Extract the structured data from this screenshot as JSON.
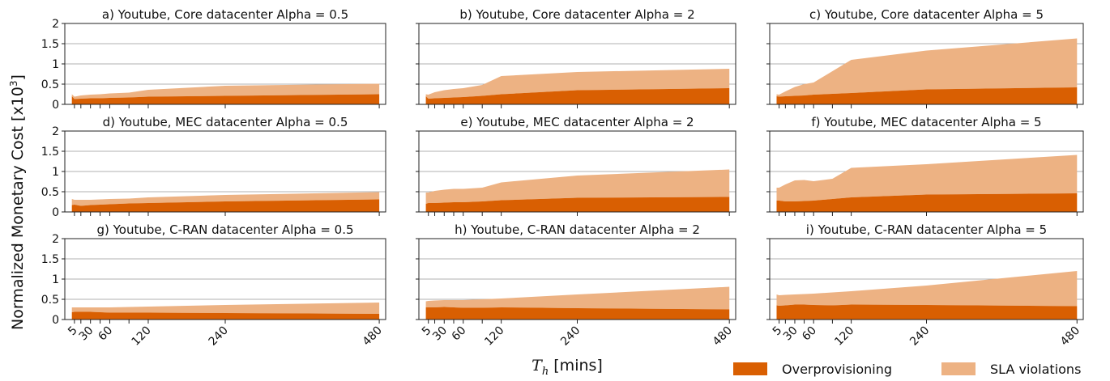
{
  "figure": {
    "ylabel": "Normalized Monetary Cost [x10",
    "ylabel_sup": "3",
    "ylabel_end": "]",
    "xlabel_var": "T",
    "xlabel_sub": "h",
    "xlabel_unit": " [mins]"
  },
  "legend": {
    "items": [
      {
        "label": "Overprovisioning",
        "color": "#d95f02"
      },
      {
        "label": "SLA violations",
        "color": "#edb283"
      }
    ]
  },
  "chart_data": [
    {
      "type": "area",
      "title": "a) Youtube, Core datacenter Alpha = 0.5",
      "x": [
        1,
        5,
        15,
        30,
        45,
        60,
        90,
        120,
        240,
        480
      ],
      "series": [
        {
          "name": "Overprovisioning",
          "values": [
            0.2,
            0.13,
            0.14,
            0.15,
            0.15,
            0.16,
            0.17,
            0.19,
            0.21,
            0.25
          ]
        },
        {
          "name": "SLA violations",
          "values": [
            0.05,
            0.06,
            0.08,
            0.09,
            0.1,
            0.11,
            0.12,
            0.17,
            0.25,
            0.26
          ]
        }
      ],
      "ylim": [
        0,
        2
      ],
      "yticks": [
        "0",
        "0.5",
        "1",
        "1.5",
        "2"
      ],
      "xticks": [],
      "grid": "horizontal"
    },
    {
      "type": "area",
      "title": "b) Youtube, Core datacenter Alpha = 2",
      "x": [
        1,
        5,
        15,
        30,
        45,
        60,
        90,
        120,
        240,
        480
      ],
      "series": [
        {
          "name": "Overprovisioning",
          "values": [
            0.2,
            0.14,
            0.15,
            0.16,
            0.17,
            0.18,
            0.21,
            0.25,
            0.35,
            0.4
          ]
        },
        {
          "name": "SLA violations",
          "values": [
            0.05,
            0.1,
            0.15,
            0.19,
            0.21,
            0.22,
            0.27,
            0.45,
            0.45,
            0.48
          ]
        }
      ],
      "ylim": [
        0,
        2
      ],
      "yticks": [],
      "xticks": [],
      "grid": "horizontal"
    },
    {
      "type": "area",
      "title": "c) Youtube, Core datacenter Alpha = 5",
      "x": [
        1,
        5,
        15,
        30,
        45,
        60,
        90,
        120,
        240,
        480
      ],
      "series": [
        {
          "name": "Overprovisioning",
          "values": [
            0.2,
            0.19,
            0.2,
            0.21,
            0.22,
            0.24,
            0.26,
            0.28,
            0.37,
            0.42
          ]
        },
        {
          "name": "SLA violations",
          "values": [
            0.05,
            0.05,
            0.12,
            0.22,
            0.28,
            0.3,
            0.56,
            0.82,
            0.96,
            1.21
          ]
        }
      ],
      "ylim": [
        0,
        2
      ],
      "yticks": [],
      "xticks": [],
      "grid": "horizontal"
    },
    {
      "type": "area",
      "title": "d) Youtube, MEC datacenter Alpha = 0.5",
      "x": [
        1,
        5,
        15,
        30,
        45,
        60,
        90,
        120,
        240,
        480
      ],
      "series": [
        {
          "name": "Overprovisioning",
          "values": [
            0.17,
            0.18,
            0.15,
            0.17,
            0.18,
            0.19,
            0.21,
            0.22,
            0.26,
            0.31
          ]
        },
        {
          "name": "SLA violations",
          "values": [
            0.15,
            0.12,
            0.15,
            0.13,
            0.13,
            0.13,
            0.12,
            0.14,
            0.16,
            0.18
          ]
        }
      ],
      "ylim": [
        0,
        2
      ],
      "yticks": [
        "0",
        "0.5",
        "1",
        "1.5",
        "2"
      ],
      "xticks": [],
      "grid": "horizontal"
    },
    {
      "type": "area",
      "title": "e) Youtube, MEC datacenter Alpha = 2",
      "x": [
        1,
        5,
        15,
        30,
        45,
        60,
        90,
        120,
        240,
        480
      ],
      "series": [
        {
          "name": "Overprovisioning",
          "values": [
            0.2,
            0.22,
            0.22,
            0.23,
            0.24,
            0.24,
            0.26,
            0.29,
            0.35,
            0.37
          ]
        },
        {
          "name": "SLA violations",
          "values": [
            0.28,
            0.26,
            0.3,
            0.32,
            0.33,
            0.33,
            0.34,
            0.44,
            0.55,
            0.68
          ]
        }
      ],
      "ylim": [
        0,
        2
      ],
      "yticks": [],
      "xticks": [],
      "grid": "horizontal"
    },
    {
      "type": "area",
      "title": "f) Youtube, MEC datacenter Alpha = 5",
      "x": [
        1,
        5,
        15,
        30,
        45,
        60,
        90,
        120,
        240,
        480
      ],
      "series": [
        {
          "name": "Overprovisioning",
          "values": [
            0.28,
            0.28,
            0.26,
            0.26,
            0.27,
            0.28,
            0.32,
            0.36,
            0.43,
            0.46
          ]
        },
        {
          "name": "SLA violations",
          "values": [
            0.32,
            0.32,
            0.42,
            0.52,
            0.52,
            0.48,
            0.5,
            0.73,
            0.75,
            0.95
          ]
        }
      ],
      "ylim": [
        0,
        2
      ],
      "yticks": [],
      "xticks": [],
      "grid": "horizontal"
    },
    {
      "type": "area",
      "title": "g) Youtube, C-RAN datacenter Alpha = 0.5",
      "x": [
        1,
        5,
        15,
        30,
        45,
        60,
        90,
        120,
        240,
        480
      ],
      "series": [
        {
          "name": "Overprovisioning",
          "values": [
            0.18,
            0.19,
            0.19,
            0.19,
            0.18,
            0.17,
            0.17,
            0.17,
            0.16,
            0.14
          ]
        },
        {
          "name": "SLA violations",
          "values": [
            0.12,
            0.11,
            0.11,
            0.11,
            0.12,
            0.13,
            0.14,
            0.15,
            0.2,
            0.28
          ]
        }
      ],
      "ylim": [
        0,
        2
      ],
      "yticks": [
        "0",
        "0.5",
        "1",
        "1.5",
        "2"
      ],
      "xticks": [
        "5",
        "30",
        "60",
        "120",
        "240",
        "480"
      ],
      "grid": "horizontal"
    },
    {
      "type": "area",
      "title": "h) Youtube, C-RAN datacenter Alpha = 2",
      "x": [
        1,
        5,
        15,
        30,
        45,
        60,
        90,
        120,
        240,
        480
      ],
      "series": [
        {
          "name": "Overprovisioning",
          "values": [
            0.3,
            0.3,
            0.3,
            0.31,
            0.3,
            0.29,
            0.29,
            0.3,
            0.28,
            0.25
          ]
        },
        {
          "name": "SLA violations",
          "values": [
            0.15,
            0.16,
            0.17,
            0.17,
            0.18,
            0.19,
            0.21,
            0.22,
            0.34,
            0.56
          ]
        }
      ],
      "ylim": [
        0,
        2
      ],
      "yticks": [],
      "xticks": [
        "5",
        "30",
        "60",
        "120",
        "240",
        "480"
      ],
      "grid": "horizontal"
    },
    {
      "type": "area",
      "title": "i) Youtube, C-RAN datacenter Alpha = 5",
      "x": [
        1,
        5,
        15,
        30,
        45,
        60,
        90,
        120,
        240,
        480
      ],
      "series": [
        {
          "name": "Overprovisioning",
          "values": [
            0.35,
            0.34,
            0.35,
            0.37,
            0.37,
            0.36,
            0.35,
            0.37,
            0.36,
            0.33
          ]
        },
        {
          "name": "SLA violations",
          "values": [
            0.27,
            0.26,
            0.26,
            0.25,
            0.26,
            0.28,
            0.32,
            0.33,
            0.48,
            0.87
          ]
        }
      ],
      "ylim": [
        0,
        2
      ],
      "yticks": [],
      "xticks": [
        "5",
        "30",
        "60",
        "120",
        "240",
        "480"
      ],
      "grid": "horizontal"
    }
  ]
}
